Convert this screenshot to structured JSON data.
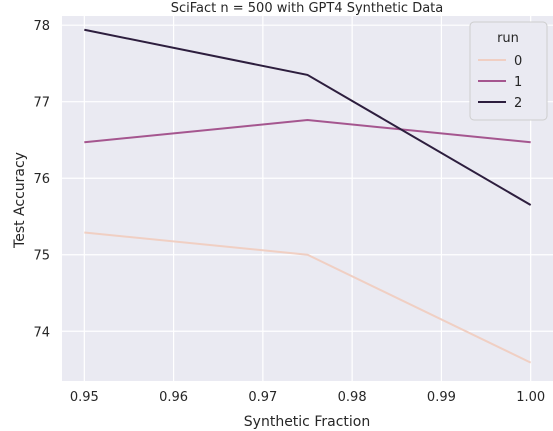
{
  "chart_data": {
    "type": "line",
    "title": "SciFact n = 500 with GPT4 Synthetic Data",
    "xlabel": "Synthetic Fraction",
    "ylabel": "Test Accuracy",
    "x": [
      0.95,
      0.975,
      1.0
    ],
    "xlim": [
      0.9475,
      1.0025
    ],
    "ylim": [
      73.35,
      78.12
    ],
    "xticks": [
      0.95,
      0.96,
      0.97,
      0.98,
      0.99,
      1.0
    ],
    "xtick_labels": [
      "0.95",
      "0.96",
      "0.97",
      "0.98",
      "0.99",
      "1.00"
    ],
    "yticks": [
      74,
      75,
      76,
      77,
      78
    ],
    "ytick_labels": [
      "74",
      "75",
      "76",
      "77",
      "78"
    ],
    "grid": true,
    "legend": {
      "title": "run",
      "placement": "top-right"
    },
    "series": [
      {
        "name": "0",
        "values": [
          75.29,
          75.0,
          73.59
        ],
        "color": "#f0cfc3"
      },
      {
        "name": "1",
        "values": [
          76.47,
          76.76,
          76.47
        ],
        "color": "#a5568f"
      },
      {
        "name": "2",
        "values": [
          77.94,
          77.35,
          75.65
        ],
        "color": "#2d1e3e"
      }
    ]
  }
}
